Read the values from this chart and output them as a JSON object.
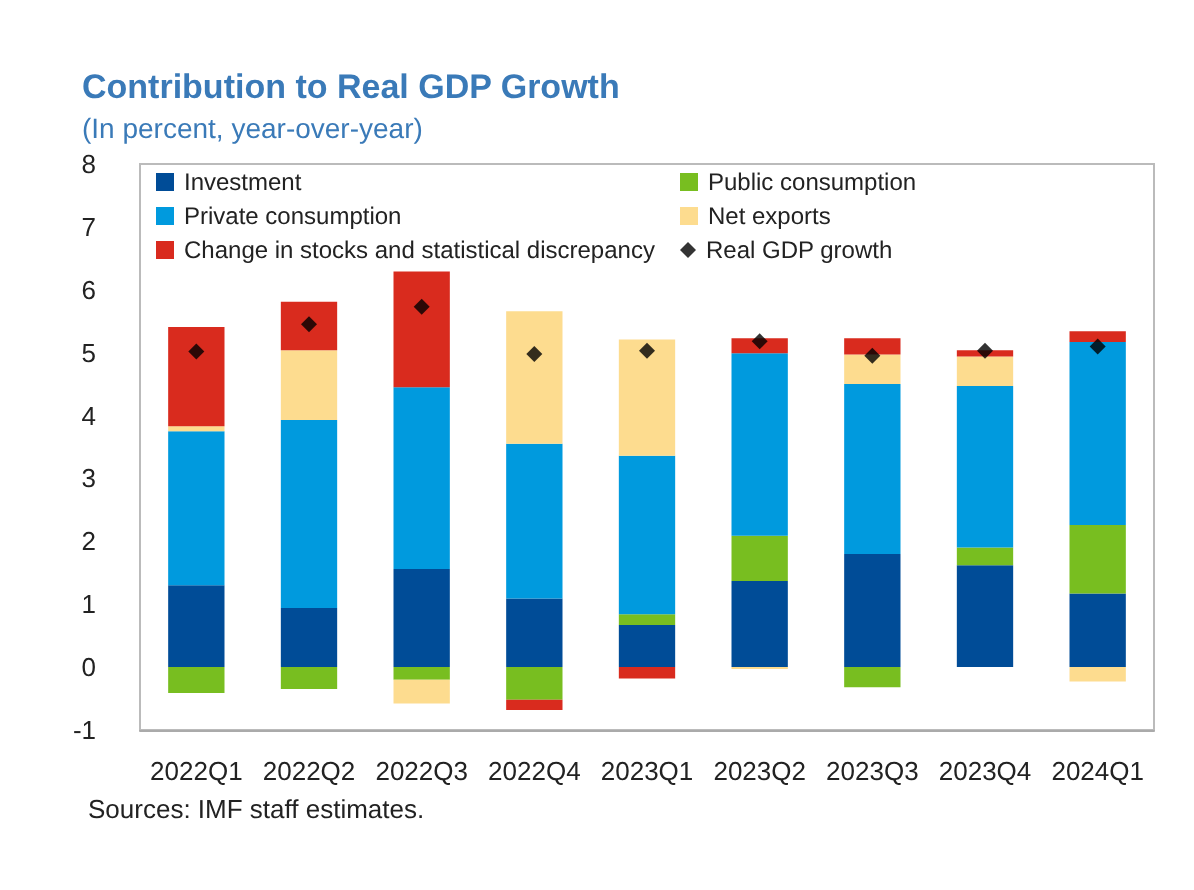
{
  "chart_data": {
    "type": "bar",
    "title": "Contribution to Real GDP Growth",
    "subtitle": "(In percent, year-over-year)",
    "categories": [
      "2022Q1",
      "2022Q2",
      "2022Q3",
      "2022Q4",
      "2023Q1",
      "2023Q2",
      "2023Q3",
      "2023Q4",
      "2024Q1"
    ],
    "stacked": true,
    "series": [
      {
        "name": "Investment",
        "color": "#004c97",
        "values": [
          1.3,
          0.94,
          1.56,
          1.09,
          0.67,
          1.37,
          1.8,
          1.62,
          1.17
        ]
      },
      {
        "name": "Public consumption",
        "color": "#78be20",
        "values": [
          -0.41,
          -0.35,
          -0.2,
          -0.52,
          0.17,
          0.72,
          -0.32,
          0.28,
          1.09
        ]
      },
      {
        "name": "Private consumption",
        "color": "#009ade",
        "values": [
          2.45,
          2.99,
          2.89,
          2.46,
          2.52,
          2.9,
          2.7,
          2.57,
          2.91
        ]
      },
      {
        "name": "Net exports",
        "color": "#fddc8f",
        "values": [
          0.08,
          1.11,
          -0.38,
          2.11,
          1.85,
          -0.03,
          0.47,
          0.47,
          -0.23
        ]
      },
      {
        "name": "Change in stocks and statistical discrepancy",
        "color": "#d92b1e",
        "values": [
          1.58,
          0.77,
          1.84,
          -0.16,
          -0.18,
          0.24,
          0.26,
          0.1,
          0.17
        ]
      },
      {
        "name": "Real GDP growth",
        "type": "scatter",
        "color": "#000000",
        "marker": "diamond",
        "values": [
          5.02,
          5.45,
          5.73,
          4.98,
          5.03,
          5.18,
          4.95,
          5.03,
          5.1
        ]
      }
    ],
    "ylim": [
      -1,
      8
    ],
    "yticks": [
      -1,
      0,
      1,
      2,
      3,
      4,
      5,
      6,
      7,
      8
    ],
    "grid": false,
    "legend": "top left",
    "annotations": [
      "Sources: IMF staff estimates."
    ]
  }
}
